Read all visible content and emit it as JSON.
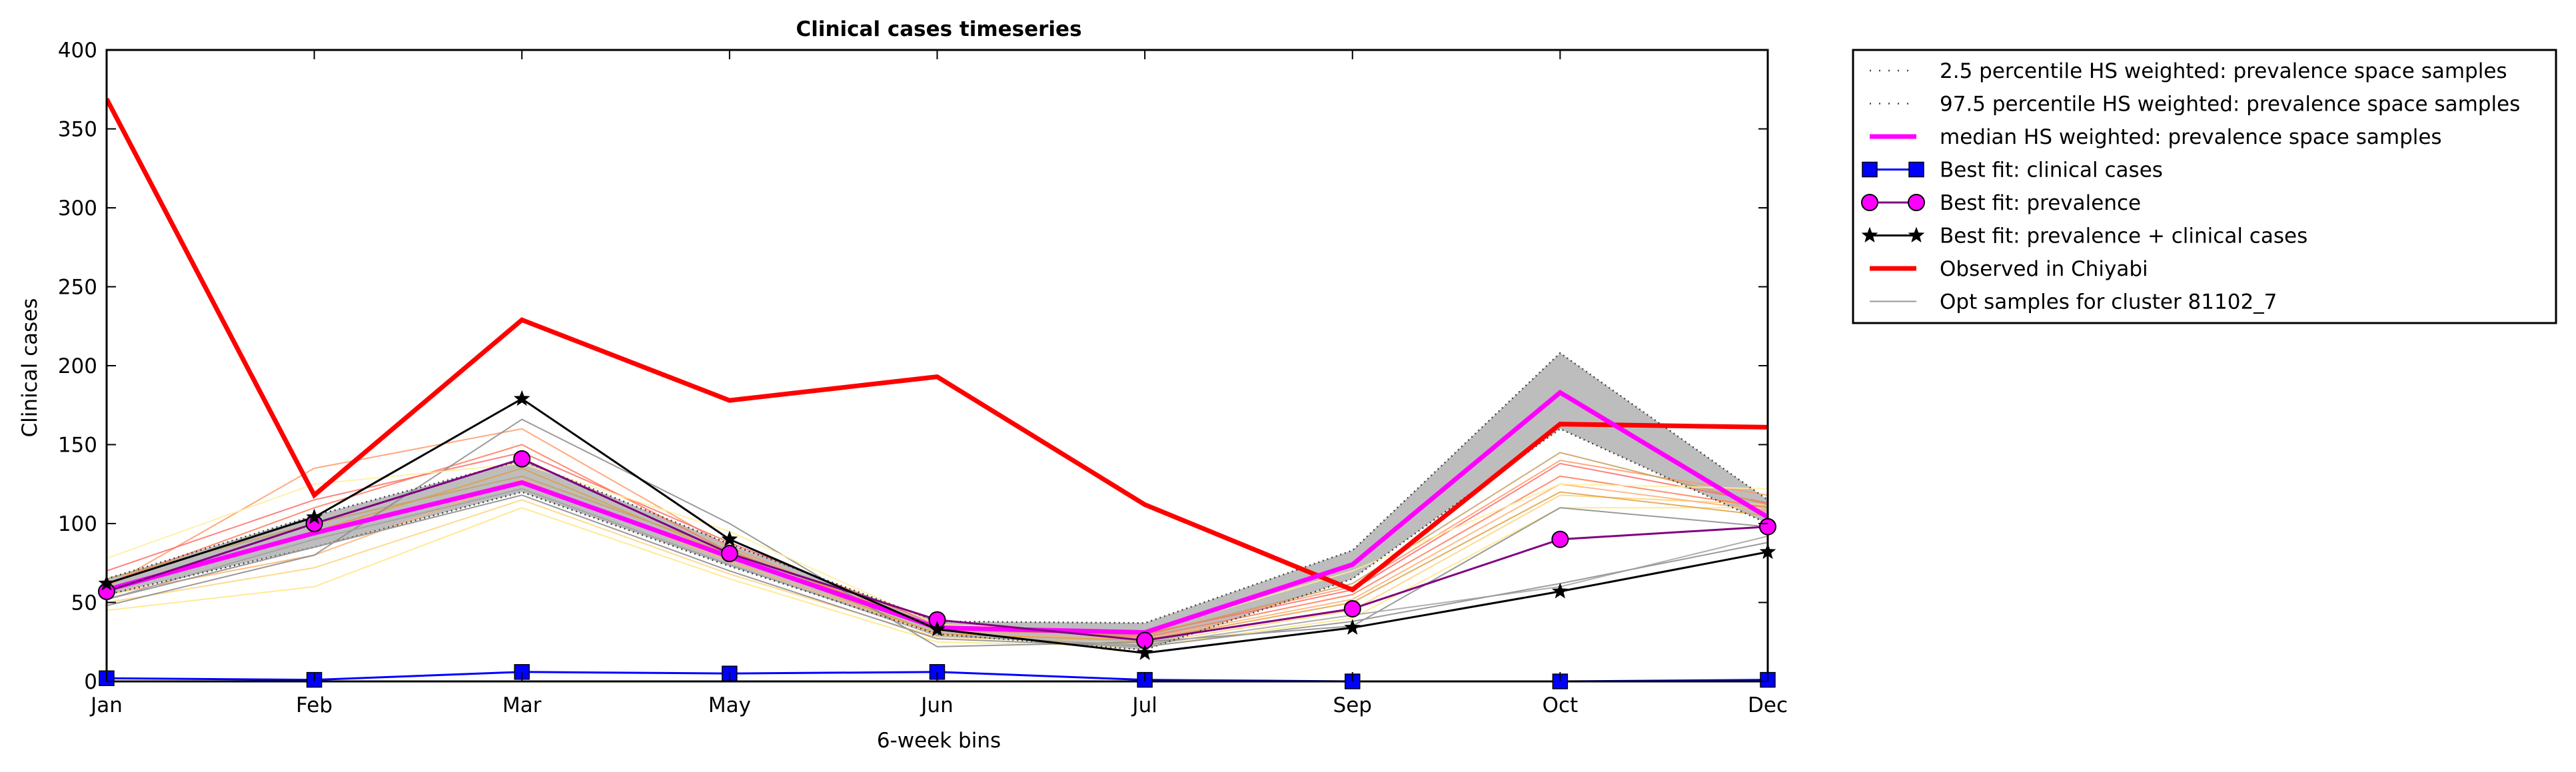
{
  "chart_data": {
    "type": "line",
    "title": "Clinical cases timeseries",
    "xlabel": "6-week bins",
    "ylabel": "Clinical cases",
    "categories": [
      "Jan",
      "Feb",
      "Mar",
      "May",
      "Jun",
      "Jul",
      "Sep",
      "Oct",
      "Dec"
    ],
    "ylim": [
      0,
      400
    ],
    "yticks": [
      "0",
      "50",
      "100",
      "150",
      "200",
      "250",
      "300",
      "350",
      "400"
    ],
    "grid": false,
    "legend_position": "outside-top-right",
    "band": {
      "fill": "#bdbdbd",
      "lower_name": "2.5 percentile HS weighted: prevalence space samples",
      "upper_name": "97.5 percentile HS weighted: prevalence space samples",
      "lower": [
        55,
        85,
        120,
        73,
        30,
        20,
        65,
        160,
        100
      ],
      "upper": [
        65,
        105,
        140,
        87,
        38,
        37,
        83,
        208,
        115
      ]
    },
    "series": [
      {
        "name": "median HS weighted: prevalence space samples",
        "color": "#ff00ff",
        "values": [
          58,
          94,
          126,
          79,
          34,
          31,
          74,
          183,
          104
        ]
      },
      {
        "name": "Best fit: clinical cases",
        "color": "#0000ff",
        "values": [
          2,
          1,
          6,
          5,
          6,
          1,
          0,
          0,
          1
        ]
      },
      {
        "name": "Best fit: prevalence",
        "color": "#800080",
        "values": [
          57,
          100,
          141,
          81,
          39,
          26,
          46,
          90,
          98
        ]
      },
      {
        "name": "Best fit: prevalence + clinical cases",
        "color": "#000000",
        "values": [
          62,
          104,
          179,
          90,
          33,
          18,
          34,
          57,
          82
        ]
      },
      {
        "name": "Observed in Chiyabi",
        "color": "#ff0000",
        "values": [
          369,
          118,
          229,
          178,
          193,
          112,
          58,
          163,
          161
        ]
      },
      {
        "name": "Opt samples for cluster 81102_7",
        "color": "#999999",
        "values": [
          52,
          85,
          118,
          70,
          27,
          22,
          38,
          62,
          88
        ]
      }
    ],
    "samples": [
      {
        "color": "#ffe680",
        "values": [
          45,
          60,
          110,
          65,
          25,
          22,
          40,
          110,
          110
        ]
      },
      {
        "color": "#ffd27a",
        "values": [
          50,
          72,
          115,
          68,
          28,
          24,
          45,
          118,
          112
        ]
      },
      {
        "color": "#ffb070",
        "values": [
          55,
          80,
          128,
          76,
          30,
          27,
          52,
          125,
          108
        ]
      },
      {
        "color": "#ff9966",
        "values": [
          60,
          135,
          160,
          85,
          32,
          30,
          60,
          140,
          118
        ]
      },
      {
        "color": "#ff7a55",
        "values": [
          62,
          110,
          150,
          82,
          35,
          28,
          55,
          130,
          110
        ]
      },
      {
        "color": "#ff6a6a",
        "values": [
          70,
          115,
          145,
          88,
          36,
          30,
          58,
          138,
          113
        ]
      },
      {
        "color": "#e0a040",
        "values": [
          58,
          95,
          135,
          80,
          30,
          26,
          50,
          120,
          105
        ]
      },
      {
        "color": "#c8a060",
        "values": [
          65,
          100,
          130,
          83,
          33,
          29,
          62,
          145,
          112
        ]
      },
      {
        "color": "#888888",
        "values": [
          48,
          80,
          166,
          100,
          22,
          25,
          35,
          110,
          98
        ]
      },
      {
        "color": "#a0a0a0",
        "values": [
          52,
          90,
          122,
          74,
          29,
          23,
          42,
          60,
          92
        ]
      },
      {
        "color": "#ffef9a",
        "values": [
          78,
          125,
          138,
          95,
          36,
          31,
          70,
          125,
          122
        ]
      }
    ]
  }
}
